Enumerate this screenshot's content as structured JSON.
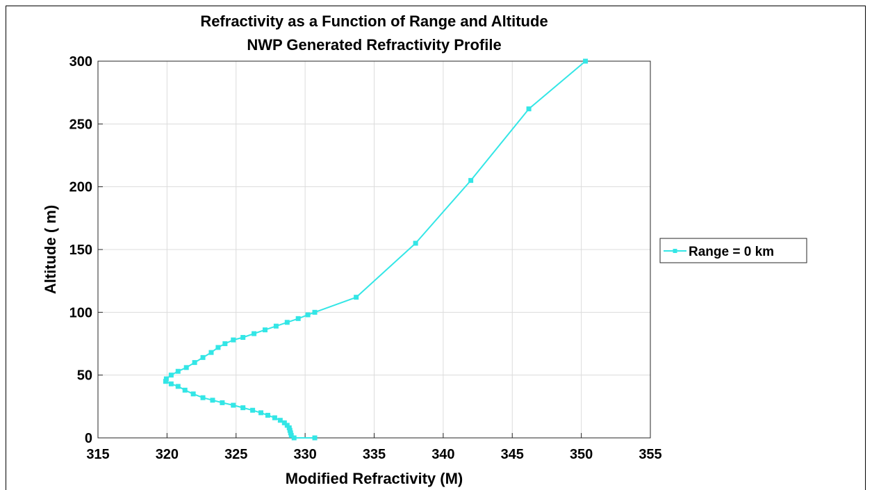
{
  "chart_data": {
    "type": "line",
    "title": "Refractivity as a Function of Range and Altitude",
    "subtitle": "NWP Generated Refractivity Profile",
    "xlabel": "Modified Refractivity (M)",
    "ylabel": "Altitude ( m)",
    "xlim": [
      315,
      355
    ],
    "ylim": [
      0,
      300
    ],
    "xticks": [
      "315",
      "320",
      "325",
      "330",
      "335",
      "340",
      "345",
      "350",
      "355"
    ],
    "yticks": [
      "0",
      "50",
      "100",
      "150",
      "200",
      "250",
      "300"
    ],
    "grid": true,
    "legend_position": "right",
    "series": [
      {
        "name": "Range = 0 km",
        "color": "#33e6e6",
        "marker": "square",
        "x": [
          330.7,
          329.2,
          329.0,
          328.95,
          328.9,
          328.85,
          328.7,
          328.5,
          328.2,
          327.8,
          327.3,
          326.8,
          326.2,
          325.5,
          324.8,
          324.0,
          323.3,
          322.6,
          321.9,
          321.3,
          320.8,
          320.3,
          319.9,
          319.95,
          320.3,
          320.8,
          321.4,
          322.0,
          322.6,
          323.2,
          323.7,
          324.2,
          324.8,
          325.5,
          326.3,
          327.1,
          327.9,
          328.7,
          329.5,
          330.2,
          330.7,
          333.7,
          338.0,
          342.0,
          346.2,
          350.3
        ],
        "y": [
          0,
          0,
          2,
          4,
          6,
          8,
          10,
          12,
          14,
          16,
          18,
          20,
          22,
          24,
          26,
          28,
          30,
          32,
          35,
          38,
          41,
          43,
          45,
          47,
          50,
          53,
          56,
          60,
          64,
          68,
          72,
          75,
          78,
          80,
          83,
          86,
          89,
          92,
          95,
          98,
          100,
          112,
          155,
          205,
          262,
          300
        ]
      }
    ]
  }
}
